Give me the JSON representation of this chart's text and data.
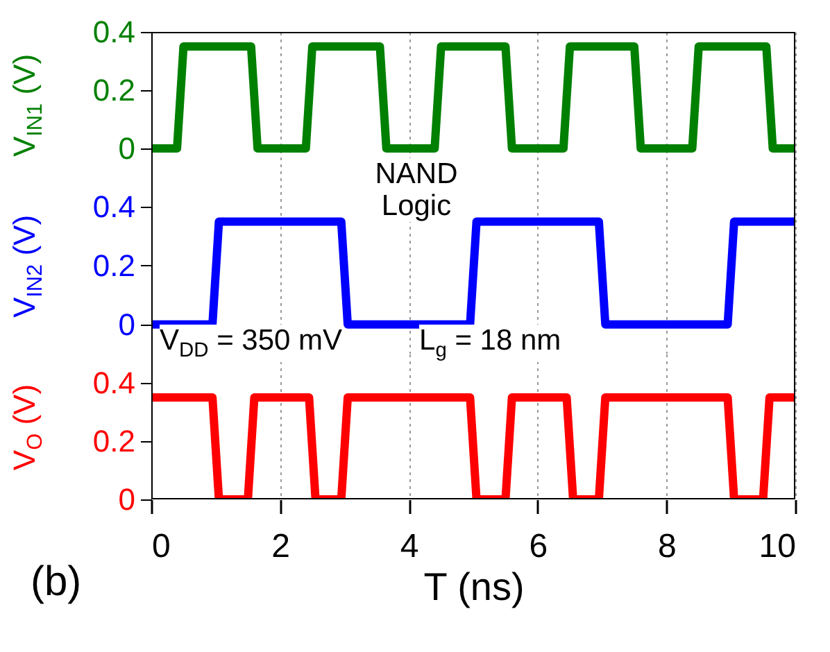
{
  "chart_data": [
    {
      "type": "line",
      "ylabel": "V$_{IN1}$ (V)",
      "xlim": [
        0,
        10
      ],
      "xticks": [
        0,
        2,
        4,
        6,
        8,
        10
      ],
      "ylim": [
        -0.1,
        0.4
      ],
      "yticks": [
        0,
        0.2,
        0.4
      ],
      "grid": "x",
      "tick_labels": "y",
      "x": [
        0,
        0.4,
        0.5,
        1.55,
        1.65,
        2.4,
        2.5,
        3.55,
        3.65,
        4.4,
        4.5,
        5.5,
        5.6,
        6.4,
        6.5,
        7.5,
        7.6,
        8.4,
        8.5,
        9.55,
        9.65,
        10
      ],
      "series": [
        {
          "color": "#008000",
          "values": [
            0,
            0,
            0.35,
            0.35,
            0,
            0,
            0.35,
            0.35,
            0,
            0,
            0.35,
            0.35,
            0,
            0,
            0.35,
            0.35,
            0,
            0,
            0.35,
            0.35,
            0,
            0
          ]
        }
      ]
    },
    {
      "type": "line",
      "ylabel": "V$_{IN2}$ (V)",
      "xlim": [
        0,
        10
      ],
      "xticks": [
        0,
        2,
        4,
        6,
        8,
        10
      ],
      "ylim": [
        -0.1,
        0.5
      ],
      "yticks": [
        0,
        0.2,
        0.4
      ],
      "grid": "x",
      "tick_labels": "y",
      "annotations": [
        "NAND Logic",
        "V$_{DD}$ = 350 mV",
        "L$_{g}$ = 18 nm"
      ],
      "x": [
        0,
        0.95,
        1.05,
        2.95,
        3.05,
        4.95,
        5.05,
        6.95,
        7.05,
        8.95,
        9.05,
        10
      ],
      "series": [
        {
          "color": "#0000ff",
          "values": [
            0,
            0,
            0.35,
            0.35,
            0,
            0,
            0.35,
            0.35,
            0,
            0,
            0.35,
            0.35
          ]
        }
      ]
    },
    {
      "type": "line",
      "xlabel": "T (ns)",
      "ylabel": "V$_{O}$ (V)",
      "xlim": [
        0,
        10
      ],
      "xticks": [
        0,
        2,
        4,
        6,
        8,
        10
      ],
      "ylim": [
        0,
        0.5
      ],
      "yticks": [
        0,
        0.2,
        0.4
      ],
      "grid": "x",
      "annotations": [
        "(b)"
      ],
      "x": [
        0,
        0.95,
        1.05,
        1.5,
        1.6,
        2.45,
        2.55,
        2.95,
        3.05,
        4.95,
        5.05,
        5.5,
        5.6,
        6.45,
        6.55,
        6.95,
        7.05,
        8.95,
        9.05,
        9.5,
        9.6,
        10
      ],
      "series": [
        {
          "color": "#ff0000",
          "values": [
            0.35,
            0.35,
            0,
            0,
            0.35,
            0.35,
            0,
            0,
            0.35,
            0.35,
            0,
            0,
            0.35,
            0.35,
            0,
            0,
            0.35,
            0.35,
            0,
            0,
            0.35,
            0.35
          ]
        }
      ]
    }
  ]
}
